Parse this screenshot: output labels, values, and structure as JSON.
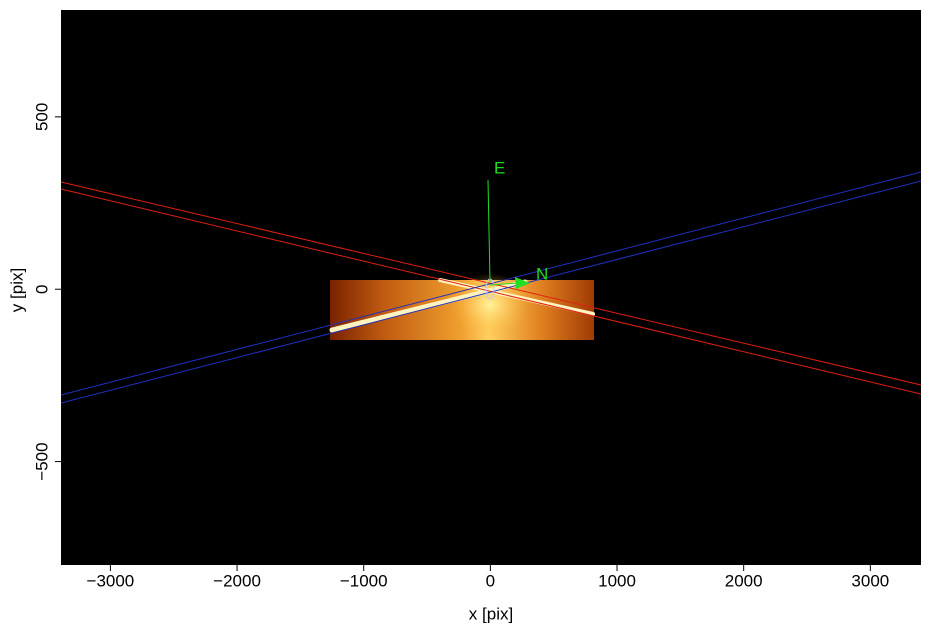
{
  "chart_data": {
    "type": "image",
    "xlabel": "x [pix]",
    "ylabel": "y [pix]",
    "xlim": [
      -3390,
      3400
    ],
    "ylim": [
      -800,
      810
    ],
    "xticks": [
      {
        "value": -3000,
        "label": "−3000"
      },
      {
        "value": -2000,
        "label": "−2000"
      },
      {
        "value": -1000,
        "label": "−1000"
      },
      0,
      1000,
      2000,
      3000
    ],
    "yticks": [
      {
        "value": -500,
        "label": "−500"
      },
      0,
      500
    ],
    "annotations": [
      "E",
      "N"
    ]
  }
}
